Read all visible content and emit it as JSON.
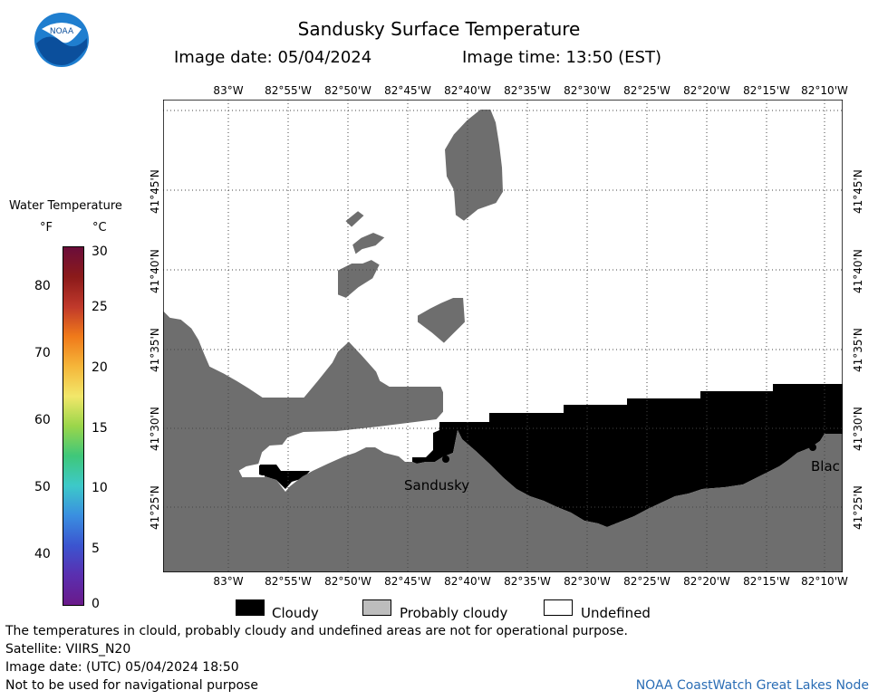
{
  "header": {
    "title": "Sandusky Surface Temperature",
    "image_date": "Image date: 05/04/2024",
    "image_time": "Image time: 13:50 (EST)",
    "logo_text": "NOAA"
  },
  "map": {
    "lon_labels": [
      "83°W",
      "82°55'W",
      "82°50'W",
      "82°45'W",
      "82°40'W",
      "82°35'W",
      "82°30'W",
      "82°25'W",
      "82°20'W",
      "82°15'W",
      "82°10'W"
    ],
    "lat_labels": [
      "41°45'N",
      "41°40'N",
      "41°35'N",
      "41°30'N",
      "41°25'N"
    ],
    "place_labels": {
      "sandusky": "Sandusky",
      "bla": "Blac"
    }
  },
  "colorbar": {
    "title": "Water Temperature",
    "unit_f": "°F",
    "unit_c": "°C",
    "f_ticks": [
      "80",
      "70",
      "60",
      "50",
      "40"
    ],
    "c_ticks": [
      "30",
      "25",
      "20",
      "15",
      "10",
      "5",
      "0"
    ],
    "gradient_colors": [
      "#6a0d3a",
      "#8b1a1a",
      "#c0392b",
      "#f07a1a",
      "#f5b63a",
      "#f2e76a",
      "#9ad64a",
      "#3fc77a",
      "#3dc9c9",
      "#3a8fe0",
      "#3b55d0",
      "#5a2fb0",
      "#6a1a8a"
    ]
  },
  "legend": {
    "cloudy": "Cloudy",
    "probably_cloudy": "Probably cloudy",
    "undefined": "Undefined",
    "colors": {
      "cloudy": "#000000",
      "probably_cloudy": "#bdbdbd",
      "undefined": "#ffffff"
    }
  },
  "footer": {
    "disclaimer": "The temperatures in clould, probably cloudy and undefined areas are not for operational purpose.",
    "satellite": "Satellite: VIIRS_N20",
    "utc_date": "Image date: (UTC) 05/04/2024  18:50",
    "nav_warning": "Not to be used for navigational purpose",
    "credit": "NOAA CoastWatch Great Lakes Node"
  }
}
